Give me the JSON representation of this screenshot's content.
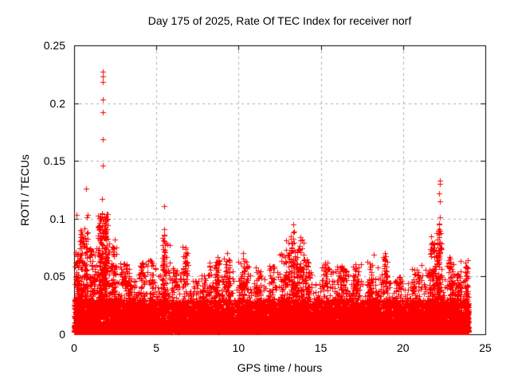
{
  "chart_data": {
    "type": "scatter",
    "title": "Day 175 of 2025, Rate Of TEC Index for receiver norf",
    "xlabel": "GPS time / hours",
    "ylabel": "ROTI / TECUs",
    "xlim": [
      0,
      25
    ],
    "ylim": [
      0,
      0.25
    ],
    "xticks": [
      0,
      5,
      10,
      15,
      20,
      25
    ],
    "yticks": [
      0,
      0.05,
      0.1,
      0.15,
      0.2,
      0.25
    ],
    "xtick_labels": [
      "0",
      "5",
      "10",
      "15",
      "20",
      "25"
    ],
    "ytick_labels": [
      "0",
      "0.05",
      "0.1",
      "0.15",
      "0.2",
      "0.25"
    ],
    "grid": true,
    "grid_style": "dashed",
    "legend": "none",
    "marker": {
      "shape": "plus",
      "color": "#ff0000",
      "size": 7
    },
    "colors": {
      "points": "#ff0000",
      "frame": "#000000",
      "grid": "#adadad",
      "background": "#ffffff",
      "text": "#000000"
    },
    "series": [
      {
        "name": "ROTI",
        "x_hours_range": [
          0,
          24
        ]
      }
    ],
    "distribution": {
      "note": "dense noisy band of + markers from 0 to ~24 h; envelope = approx max band ROTI per 0.5 h bin",
      "bin_hours": 0.5,
      "floor": 0.002,
      "dense_top": 0.03,
      "base_point_count": 13000,
      "seed": 20250175,
      "envelope": [
        0.072,
        0.082,
        0.075,
        0.092,
        0.082,
        0.065,
        0.062,
        0.052,
        0.062,
        0.065,
        0.058,
        0.08,
        0.068,
        0.077,
        0.05,
        0.055,
        0.062,
        0.066,
        0.068,
        0.055,
        0.064,
        0.06,
        0.055,
        0.048,
        0.06,
        0.073,
        0.08,
        0.07,
        0.065,
        0.045,
        0.062,
        0.058,
        0.063,
        0.052,
        0.062,
        0.048,
        0.058,
        0.068,
        0.046,
        0.05,
        0.046,
        0.058,
        0.062,
        0.075,
        0.072,
        0.065,
        0.052,
        0.065
      ],
      "clusters": [
        [
          0.15,
          0.1,
          0.072,
          50
        ],
        [
          0.4,
          0.12,
          0.09,
          60
        ],
        [
          0.7,
          0.12,
          0.095,
          80
        ],
        [
          1.1,
          0.15,
          0.075,
          70
        ],
        [
          1.75,
          0.3,
          0.105,
          330
        ],
        [
          2.4,
          0.15,
          0.078,
          80
        ],
        [
          3.0,
          0.25,
          0.062,
          70
        ],
        [
          3.4,
          0.1,
          0.06,
          40
        ],
        [
          4.15,
          0.15,
          0.062,
          50
        ],
        [
          4.7,
          0.1,
          0.065,
          40
        ],
        [
          5.45,
          0.1,
          0.088,
          80
        ],
        [
          6.1,
          0.15,
          0.06,
          40
        ],
        [
          6.75,
          0.12,
          0.072,
          60
        ],
        [
          7.8,
          0.2,
          0.052,
          50
        ],
        [
          8.3,
          0.12,
          0.06,
          40
        ],
        [
          8.7,
          0.12,
          0.064,
          50
        ],
        [
          9.3,
          0.15,
          0.066,
          60
        ],
        [
          10.3,
          0.3,
          0.066,
          70
        ],
        [
          11.2,
          0.2,
          0.058,
          50
        ],
        [
          12.0,
          0.2,
          0.06,
          50
        ],
        [
          12.9,
          0.2,
          0.072,
          70
        ],
        [
          13.5,
          0.35,
          0.085,
          150
        ],
        [
          14.1,
          0.2,
          0.065,
          60
        ],
        [
          15.3,
          0.2,
          0.062,
          50
        ],
        [
          16.3,
          0.3,
          0.06,
          70
        ],
        [
          17.1,
          0.2,
          0.06,
          50
        ],
        [
          18.0,
          0.2,
          0.064,
          60
        ],
        [
          18.9,
          0.15,
          0.068,
          50
        ],
        [
          19.7,
          0.2,
          0.05,
          40
        ],
        [
          20.8,
          0.2,
          0.056,
          45
        ],
        [
          21.8,
          0.2,
          0.08,
          90
        ],
        [
          22.2,
          0.15,
          0.095,
          110
        ],
        [
          22.9,
          0.15,
          0.066,
          60
        ],
        [
          23.3,
          0.2,
          0.056,
          50
        ],
        [
          23.9,
          0.12,
          0.064,
          50
        ]
      ]
    },
    "outliers": [
      [
        0.13,
        0.103
      ],
      [
        0.4,
        0.09
      ],
      [
        0.71,
        0.126
      ],
      [
        0.79,
        0.101
      ],
      [
        0.82,
        0.103
      ],
      [
        0.84,
        0.088
      ],
      [
        1.72,
        0.227
      ],
      [
        1.74,
        0.223
      ],
      [
        1.76,
        0.218
      ],
      [
        1.75,
        0.203
      ],
      [
        1.74,
        0.192
      ],
      [
        1.76,
        0.169
      ],
      [
        1.74,
        0.146
      ],
      [
        1.68,
        0.117
      ],
      [
        1.69,
        0.104
      ],
      [
        1.71,
        0.104
      ],
      [
        1.9,
        0.1
      ],
      [
        1.95,
        0.096
      ],
      [
        2.45,
        0.082
      ],
      [
        5.47,
        0.111
      ],
      [
        5.47,
        0.091
      ],
      [
        5.47,
        0.086
      ],
      [
        6.77,
        0.075
      ],
      [
        6.77,
        0.071
      ],
      [
        8.7,
        0.067
      ],
      [
        9.3,
        0.07
      ],
      [
        10.25,
        0.07
      ],
      [
        12.9,
        0.081
      ],
      [
        13.34,
        0.095
      ],
      [
        13.39,
        0.089
      ],
      [
        13.3,
        0.088
      ],
      [
        13.74,
        0.084
      ],
      [
        13.87,
        0.082
      ],
      [
        13.94,
        0.079
      ],
      [
        13.66,
        0.074
      ],
      [
        13.18,
        0.071
      ],
      [
        15.6,
        0.052
      ],
      [
        18.2,
        0.069
      ],
      [
        18.9,
        0.07
      ],
      [
        21.7,
        0.085
      ],
      [
        21.72,
        0.078
      ],
      [
        22.1,
        0.078
      ],
      [
        22.22,
        0.133
      ],
      [
        22.22,
        0.13
      ],
      [
        22.2,
        0.122
      ],
      [
        22.23,
        0.115
      ],
      [
        22.22,
        0.101
      ],
      [
        22.2,
        0.096
      ],
      [
        22.8,
        0.067
      ],
      [
        22.85,
        0.063
      ],
      [
        23.95,
        0.064
      ],
      [
        23.9,
        0.058
      ]
    ]
  }
}
